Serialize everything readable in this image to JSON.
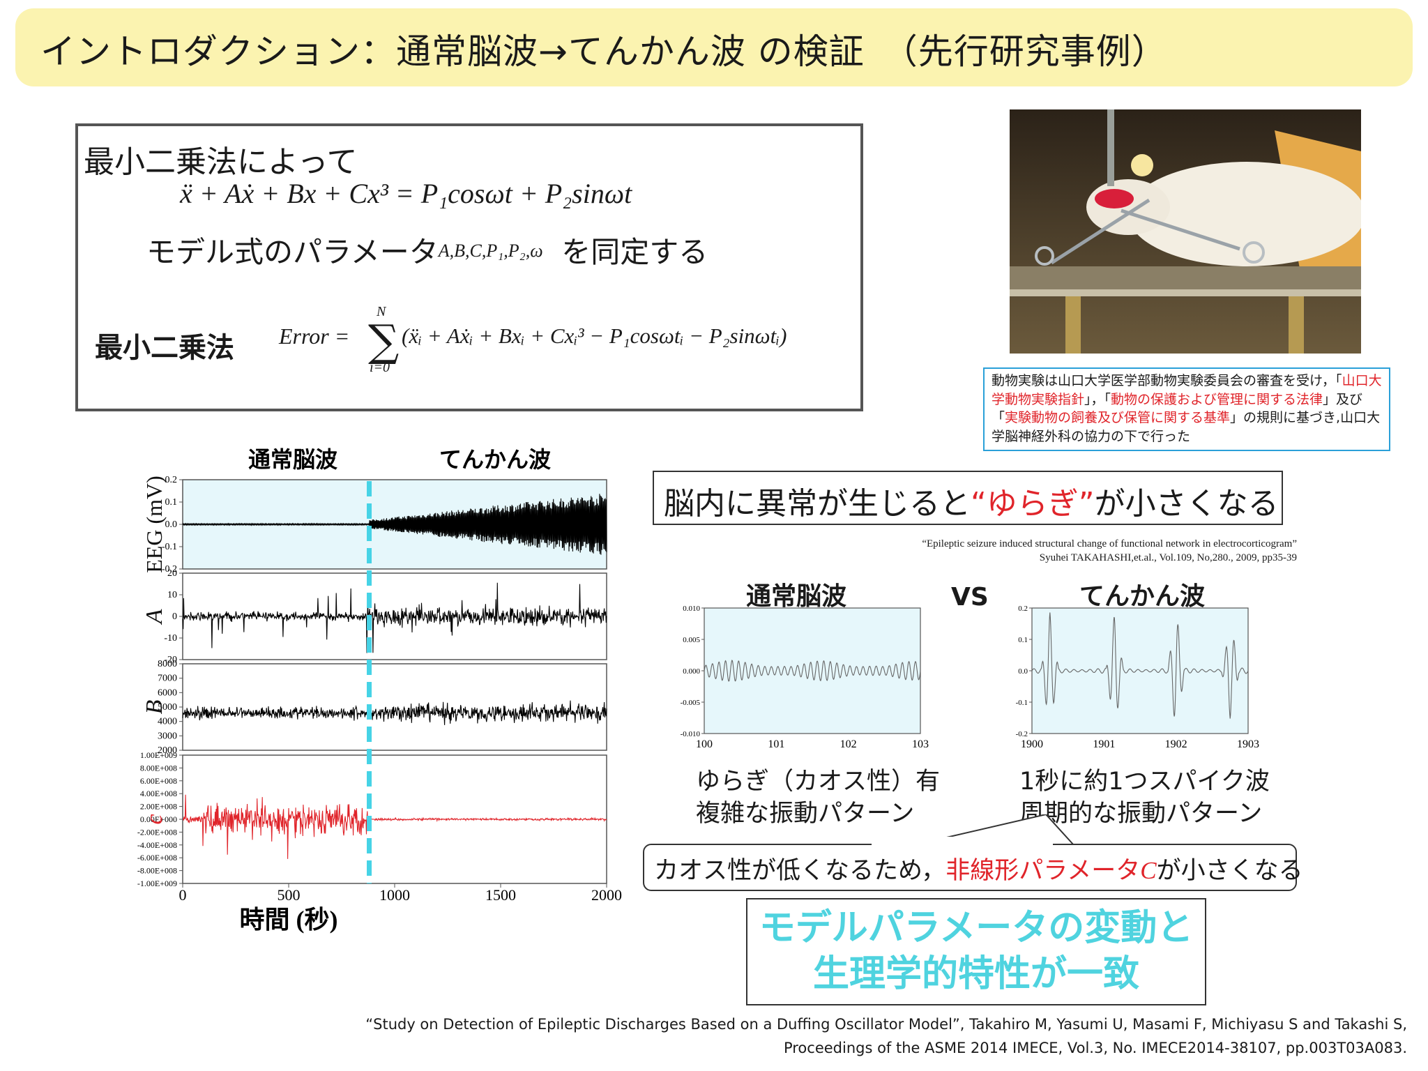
{
  "slide": {
    "title": "イントロダクション：通常脳波→てんかん波 の検証　（先行研究事例）"
  },
  "method": {
    "line1": "最小二乗法によって",
    "equation": "ẍ + Aẋ + Bx + Cx³ = P₁cosωt + P₂sinωt",
    "identify_prefix": "モデル式のパラメータ",
    "identify_params": "A,B,C,P₁,P₂,ω",
    "identify_suffix": "を同定する",
    "lsq_label": "最小二乗法",
    "error_lhs": "Error =",
    "sum_upper": "N",
    "sum_lower": "i=0",
    "error_rhs": "(ẍᵢ + Aẋᵢ + Bxᵢ + Cxᵢ³ − P₁cosωtᵢ − P₂sinωtᵢ)"
  },
  "ethics": {
    "p1": "動物実験は山口大学医学部動物実験委員会の審査を受け，「",
    "r1": "山口大学動物実験指針",
    "p2": "」，「",
    "r2": "動物の保護および管理に関する法律",
    "p3": "」及び「",
    "r3": "実験動物の飼養及び保管に関する基準",
    "p4": "」の規則に基づき,山口大学脳神経外科の協力の下で行った"
  },
  "finding": {
    "prefix": "脳内に異常が生じると",
    "highlight": "“ゆらぎ”",
    "suffix": "が小さくなる"
  },
  "ref_small": {
    "line1": "“Epileptic seizure induced structural change of functional network in electrocorticogram”",
    "line2": "Syuhei TAKAHASHI,et.al., Vol.109, No,280., 2009, pp35-39"
  },
  "comparison": {
    "left_title": "通常脳波",
    "vs": "VS",
    "right_title": "てんかん波",
    "left_desc1": "ゆらぎ（カオス性）有",
    "left_desc2": "複雑な振動パターン",
    "right_desc1": "1秒に約1つスパイク波",
    "right_desc2": "周期的な振動パターン"
  },
  "chaos": {
    "prefix": "カオス性が低くなるため，",
    "highlight": "非線形パラメータ",
    "param": "C",
    "suffix": "が小さくなる"
  },
  "conclusion": {
    "line1": "モデルパラメータの変動と",
    "line2": "生理学的特性が一致"
  },
  "citation": {
    "line1": "“Study on Detection of Epileptic Discharges Based on a Duffing Oscillator Model”, Takahiro M, Yasumi U, Masami F, Michiyasu S and Takashi S,",
    "line2": "Proceedings of the ASME 2014 IMECE, Vol.3, No. IMECE2014-38107, pp.003T03A083."
  },
  "chart_data": [
    {
      "type": "line",
      "id": "time-series-panels",
      "header_left": "通常脳波",
      "header_right": "てんかん波",
      "xlabel": "時間 (秒)",
      "xlim": [
        0,
        2000
      ],
      "xticks": [
        "0",
        "500",
        "1000",
        "1500",
        "2000"
      ],
      "seizure_onset_s": 880,
      "panels": [
        {
          "ylabel": "EEG (mV)",
          "ylim": [
            -0.2,
            0.2
          ],
          "yticks": [
            "0.2",
            "0.1",
            "0.0",
            "-0.1",
            "-0.2"
          ],
          "color": "#000000",
          "background": "#e6f7fb"
        },
        {
          "ylabel": "A",
          "ylim": [
            -25,
            25
          ],
          "yticks": [
            "20",
            "10",
            "0",
            "-10",
            "-20"
          ],
          "color": "#000000"
        },
        {
          "ylabel": "B",
          "ylim": [
            2000,
            8000
          ],
          "yticks": [
            "8000",
            "7000",
            "6000",
            "5000",
            "4000",
            "3000",
            "2000"
          ],
          "color": "#000000"
        },
        {
          "ylabel": "c",
          "ylim": [
            -1000000000.0,
            1000000000.0
          ],
          "yticks": [
            "1.00E+009",
            "8.00E+008",
            "6.00E+008",
            "4.00E+008",
            "2.00E+008",
            "0.00E+000",
            "-2.00E+008",
            "-4.00E+008",
            "-6.00E+008",
            "-8.00E+008",
            "-1.00E+009"
          ],
          "color": "#e0242a"
        }
      ]
    },
    {
      "type": "line",
      "id": "normal-eeg-zoom",
      "title": "通常脳波",
      "xlim": [
        100,
        103
      ],
      "xticks": [
        "100",
        "101",
        "102",
        "103"
      ],
      "ylim": [
        -0.01,
        0.01
      ],
      "yticks": [
        "0.010",
        "0.005",
        "0.000",
        "-0.005",
        "-0.010"
      ]
    },
    {
      "type": "line",
      "id": "epileptic-eeg-zoom",
      "title": "てんかん波",
      "xlim": [
        1900,
        1903
      ],
      "xticks": [
        "1900",
        "1901",
        "1902",
        "1903"
      ],
      "ylim": [
        -0.2,
        0.2
      ],
      "yticks": [
        "0.2",
        "0.1",
        "0.0",
        "-0.1",
        "-0.2"
      ]
    }
  ]
}
